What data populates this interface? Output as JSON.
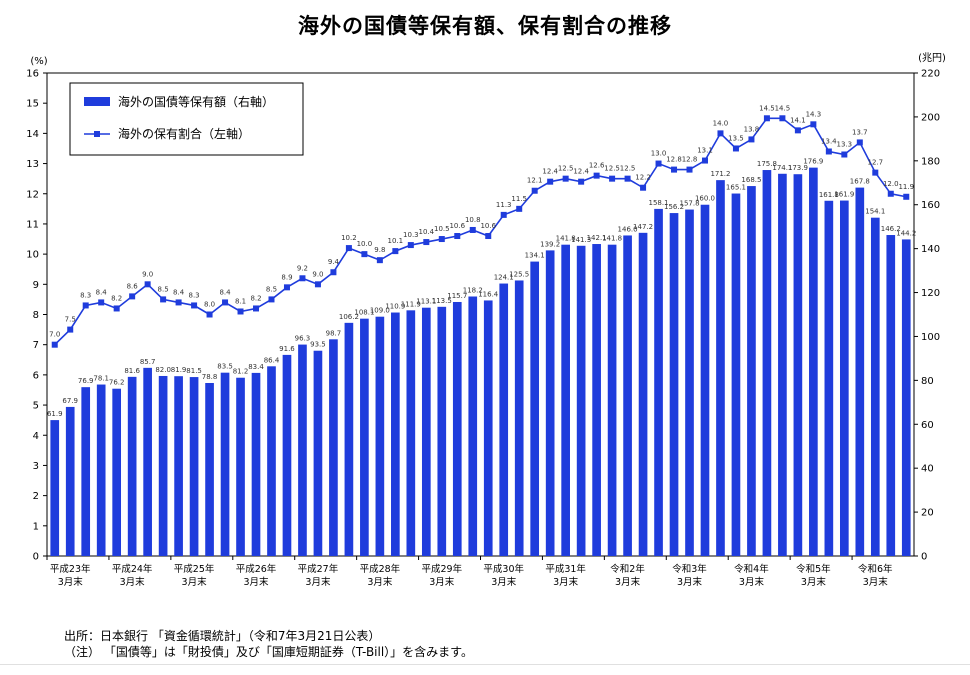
{
  "title": "海外の国債等保有額、保有割合の推移",
  "notes": {
    "source": "出所：日本銀行 「資金循環統計」（令和7年3月21日公表）",
    "remark": "（注） 「国債等」は「財投債」及び「国庫短期証券（T-Bill）」を含みます。"
  },
  "chart_data": {
    "type": "bar+line",
    "title": "海外の国債等保有額、保有割合の推移",
    "left_axis": {
      "unit_label": "(%)",
      "ylim": [
        0,
        16
      ],
      "ticks": [
        0,
        1,
        2,
        3,
        4,
        5,
        6,
        7,
        8,
        9,
        10,
        11,
        12,
        13,
        14,
        15,
        16
      ]
    },
    "right_axis": {
      "unit_label": "(兆円)",
      "ylim": [
        0,
        220
      ],
      "ticks": [
        0,
        20,
        40,
        60,
        80,
        100,
        120,
        140,
        160,
        180,
        200,
        220
      ]
    },
    "x_tick_labels": [
      {
        "index": 0,
        "line1": "平成23年",
        "line2": "3月末"
      },
      {
        "index": 4,
        "line1": "平成24年",
        "line2": "3月末"
      },
      {
        "index": 8,
        "line1": "平成25年",
        "line2": "3月末"
      },
      {
        "index": 12,
        "line1": "平成26年",
        "line2": "3月末"
      },
      {
        "index": 16,
        "line1": "平成27年",
        "line2": "3月末"
      },
      {
        "index": 20,
        "line1": "平成28年",
        "line2": "3月末"
      },
      {
        "index": 24,
        "line1": "平成29年",
        "line2": "3月末"
      },
      {
        "index": 28,
        "line1": "平成30年",
        "line2": "3月末"
      },
      {
        "index": 32,
        "line1": "平成31年",
        "line2": "3月末"
      },
      {
        "index": 36,
        "line1": "令和2年",
        "line2": "3月末"
      },
      {
        "index": 40,
        "line1": "令和3年",
        "line2": "3月末"
      },
      {
        "index": 44,
        "line1": "令和4年",
        "line2": "3月末"
      },
      {
        "index": 48,
        "line1": "令和5年",
        "line2": "3月末"
      },
      {
        "index": 52,
        "line1": "令和6年",
        "line2": "3月末"
      }
    ],
    "legend": {
      "placement": "top-left",
      "bar_label": "海外の国債等保有額（右軸）",
      "line_label": "海外の保有割合（左軸）"
    },
    "series": [
      {
        "name": "海外の国債等保有額（右軸）",
        "type": "bar",
        "axis": "right",
        "color": "#1f3cdc",
        "values": [
          61.9,
          67.9,
          76.9,
          78.1,
          76.2,
          81.6,
          85.7,
          82.0,
          81.9,
          81.5,
          78.8,
          83.5,
          81.2,
          83.4,
          86.4,
          91.6,
          96.3,
          93.5,
          98.7,
          106.2,
          108.1,
          109.0,
          110.9,
          111.9,
          113.1,
          113.5,
          115.7,
          118.2,
          116.4,
          124.1,
          125.5,
          134.1,
          139.2,
          141.8,
          141.3,
          142.1,
          141.8,
          146.0,
          147.2,
          158.1,
          156.2,
          157.8,
          160.0,
          171.2,
          165.1,
          168.5,
          175.8,
          174.1,
          173.9,
          176.9,
          161.8,
          161.9,
          167.8,
          154.1,
          146.2,
          144.2
        ]
      },
      {
        "name": "海外の保有割合（左軸）",
        "type": "line",
        "axis": "left",
        "color": "#1f3cdc",
        "values": [
          7.0,
          7.5,
          8.3,
          8.4,
          8.2,
          8.6,
          9.0,
          8.5,
          8.4,
          8.3,
          8.0,
          8.4,
          8.1,
          8.2,
          8.5,
          8.9,
          9.2,
          9.0,
          9.4,
          10.2,
          10.0,
          9.8,
          10.1,
          10.3,
          10.4,
          10.5,
          10.6,
          10.8,
          10.6,
          11.3,
          11.5,
          12.1,
          12.4,
          12.5,
          12.4,
          12.6,
          12.5,
          12.5,
          12.2,
          13.0,
          12.8,
          12.8,
          13.1,
          14.0,
          13.5,
          13.8,
          14.5,
          14.5,
          14.1,
          14.3,
          13.4,
          13.3,
          13.7,
          12.7,
          12.0,
          11.9
        ]
      }
    ]
  }
}
